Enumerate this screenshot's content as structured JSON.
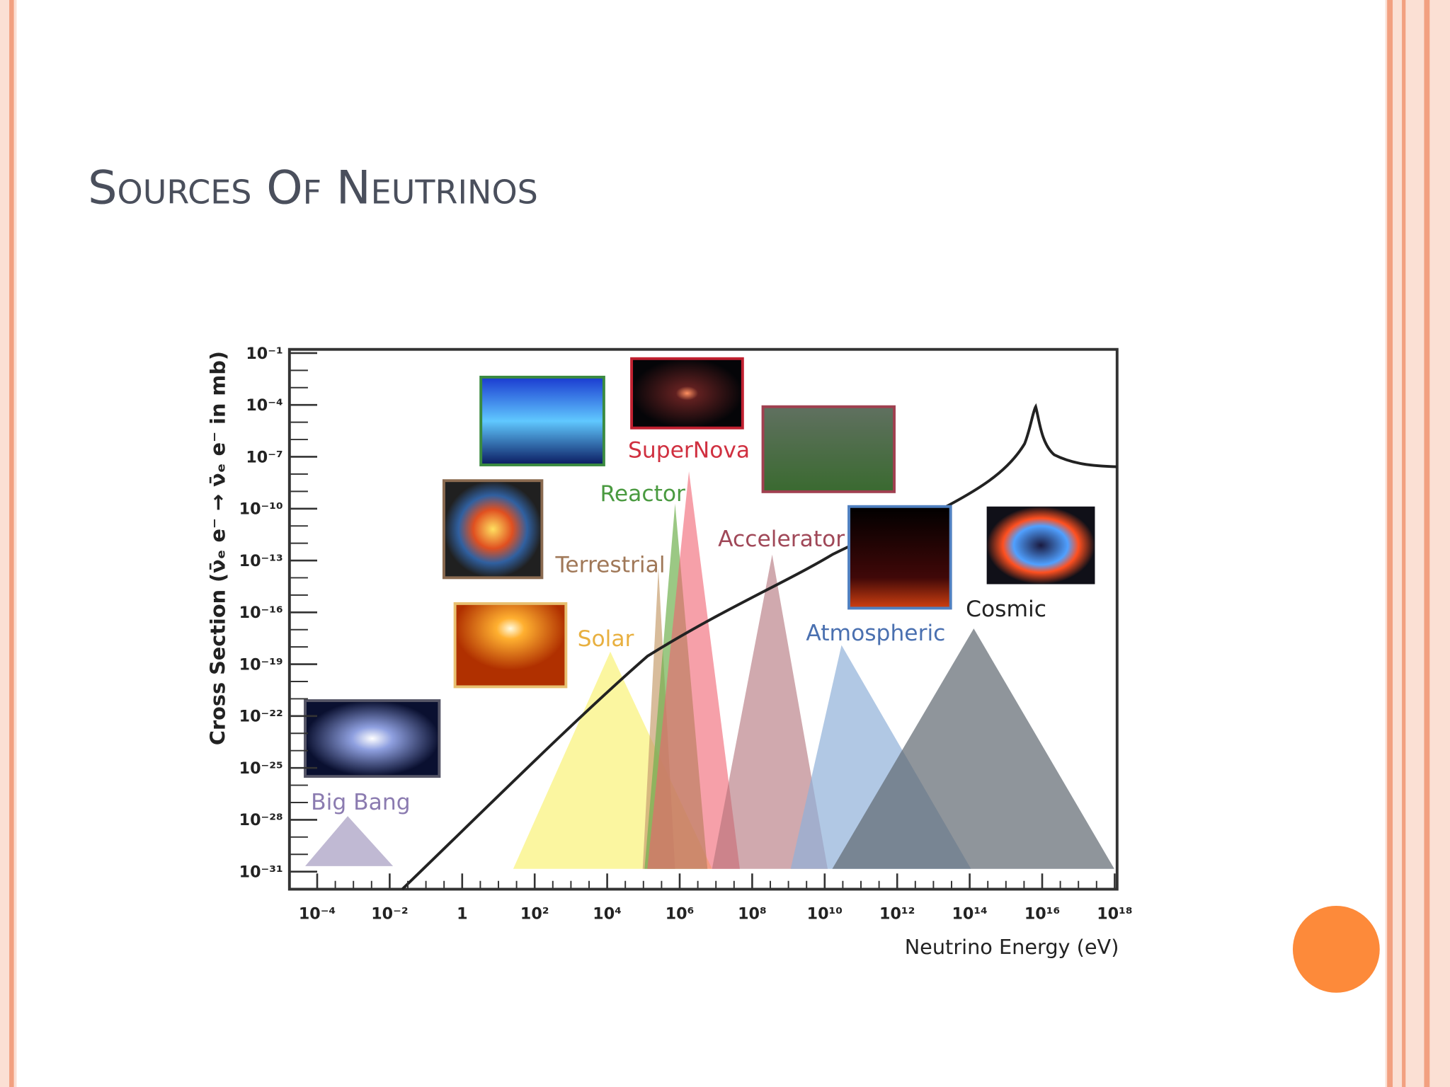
{
  "slide": {
    "title": "Sources of neutrinos"
  },
  "figure": {
    "y_axis_label": "Cross Section (ν̄ₑ e⁻ → ν̄ₑ e⁻ in mb)",
    "x_axis_label": "Neutrino Energy (eV)",
    "x_ticks": [
      "10⁻⁴",
      "10⁻²",
      "1",
      "10²",
      "10⁴",
      "10⁶",
      "10⁸",
      "10¹⁰",
      "10¹²",
      "10¹⁴",
      "10¹⁶",
      "10¹⁸"
    ],
    "y_ticks": [
      "10⁻¹",
      "10⁻⁴",
      "10⁻⁷",
      "10⁻¹⁰",
      "10⁻¹³",
      "10⁻¹⁶",
      "10⁻¹⁹",
      "10⁻²²",
      "10⁻²⁵",
      "10⁻²⁸",
      "10⁻³¹"
    ],
    "sources": [
      "Big Bang",
      "Solar",
      "Terrestrial",
      "Reactor",
      "SuperNova",
      "Accelerator",
      "Atmospheric",
      "Cosmic"
    ]
  }
}
